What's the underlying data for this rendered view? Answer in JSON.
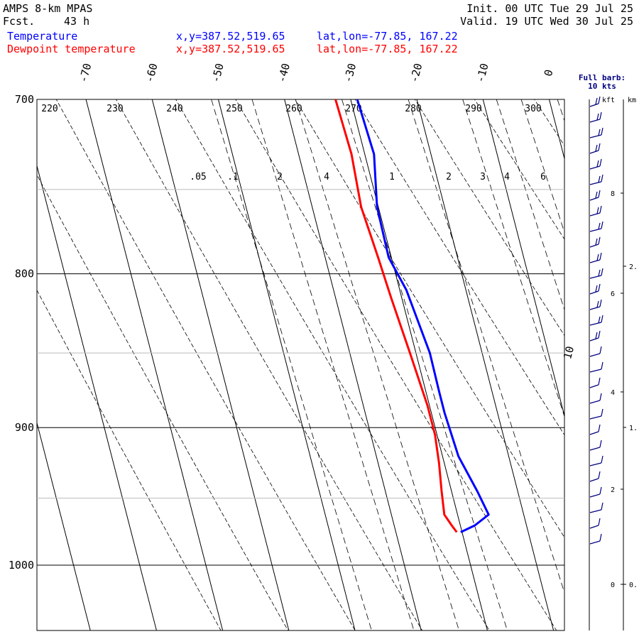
{
  "header": {
    "model": "AMPS 8-km MPAS",
    "fcst_label": "Fcst.",
    "fcst_value": "43 h",
    "init": "Init. 00 UTC Tue 29 Jul 25",
    "valid": "Valid. 19 UTC Wed 30 Jul 25",
    "temp_label": "Temperature",
    "temp_xy": "x,y=387.52,519.65",
    "temp_latlon": "lat,lon=-77.85, 167.22",
    "dew_label": "Dewpoint temperature",
    "dew_xy": "x,y=387.52,519.65",
    "dew_latlon": "lat,lon=-77.85, 167.22"
  },
  "barb_legend": {
    "title": "Full barb:",
    "value": "10 kts",
    "kft_label": "kft",
    "km_label": "km"
  },
  "colors": {
    "temperature": "#0000ff",
    "dewpoint": "#ff0000",
    "barbs": "#000080"
  },
  "chart_data": {
    "type": "line",
    "title": "",
    "xlabel": "",
    "ylabel": "",
    "pressure_range": [
      700,
      1050
    ],
    "pressure_ticks": [
      "700",
      "800",
      "900",
      "1000"
    ],
    "pressure_tick_values": [
      700,
      800,
      900,
      1000
    ],
    "temperature_ticks": [
      "-70",
      "-60",
      "-50",
      "-40",
      "-30",
      "-20",
      "-10",
      "0",
      "10"
    ],
    "temperature_tick_values": [
      -70,
      -60,
      -50,
      -40,
      -30,
      -20,
      -10,
      0,
      10
    ],
    "potential_temperature_labels": [
      "220",
      "230",
      "240",
      "250",
      "260",
      "270",
      "280",
      "290",
      "300"
    ],
    "mixing_ratio_labels": [
      ".05",
      ".1",
      "2",
      "4",
      "1",
      "2",
      "3",
      "4",
      "6"
    ],
    "kft_ticks": [
      "8",
      "6",
      "4",
      "2",
      "0"
    ],
    "kft_tick_values": [
      8,
      6,
      4,
      2,
      0
    ],
    "km_ticks": [
      "2.",
      "1.",
      "0."
    ],
    "km_tick_values": [
      2,
      1,
      0
    ],
    "series": [
      {
        "name": "Temperature",
        "color": "#0000ff",
        "points": [
          [
            700,
            -29.0
          ],
          [
            730,
            -28.6
          ],
          [
            760,
            -30.2
          ],
          [
            790,
            -30.4
          ],
          [
            810,
            -29.0
          ],
          [
            850,
            -27.9
          ],
          [
            875,
            -28.0
          ],
          [
            890,
            -28.0
          ],
          [
            920,
            -27.6
          ],
          [
            945,
            -26.1
          ],
          [
            962,
            -25.3
          ],
          [
            970,
            -27.8
          ],
          [
            975,
            -30.2
          ]
        ]
      },
      {
        "name": "Dewpoint temperature",
        "color": "#ff0000",
        "points": [
          [
            700,
            -32.3
          ],
          [
            730,
            -32.0
          ],
          [
            760,
            -32.6
          ],
          [
            790,
            -32.0
          ],
          [
            815,
            -31.6
          ],
          [
            850,
            -30.9
          ],
          [
            885,
            -30.3
          ],
          [
            905,
            -30.3
          ],
          [
            925,
            -30.8
          ],
          [
            945,
            -31.5
          ],
          [
            962,
            -32.0
          ],
          [
            970,
            -31.3
          ],
          [
            975,
            -30.8
          ]
        ]
      }
    ]
  }
}
